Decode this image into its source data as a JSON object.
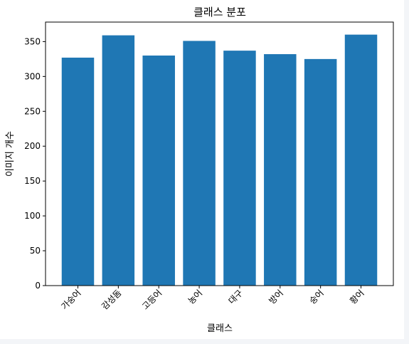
{
  "chart_data": {
    "type": "bar",
    "title": "클래스 분포",
    "xlabel": "클래스",
    "ylabel": "이미지 개수",
    "categories": [
      "가숭어",
      "감성돔",
      "고등어",
      "농어",
      "대구",
      "방어",
      "숭어",
      "황어"
    ],
    "values": [
      327,
      359,
      330,
      351,
      337,
      332,
      325,
      360
    ],
    "ylim": [
      0,
      378
    ],
    "yticks": [
      0,
      50,
      100,
      150,
      200,
      250,
      300,
      350
    ],
    "xtick_rotation": 45,
    "grid": false,
    "legend": "none",
    "bar_color": "#1f77b4"
  }
}
